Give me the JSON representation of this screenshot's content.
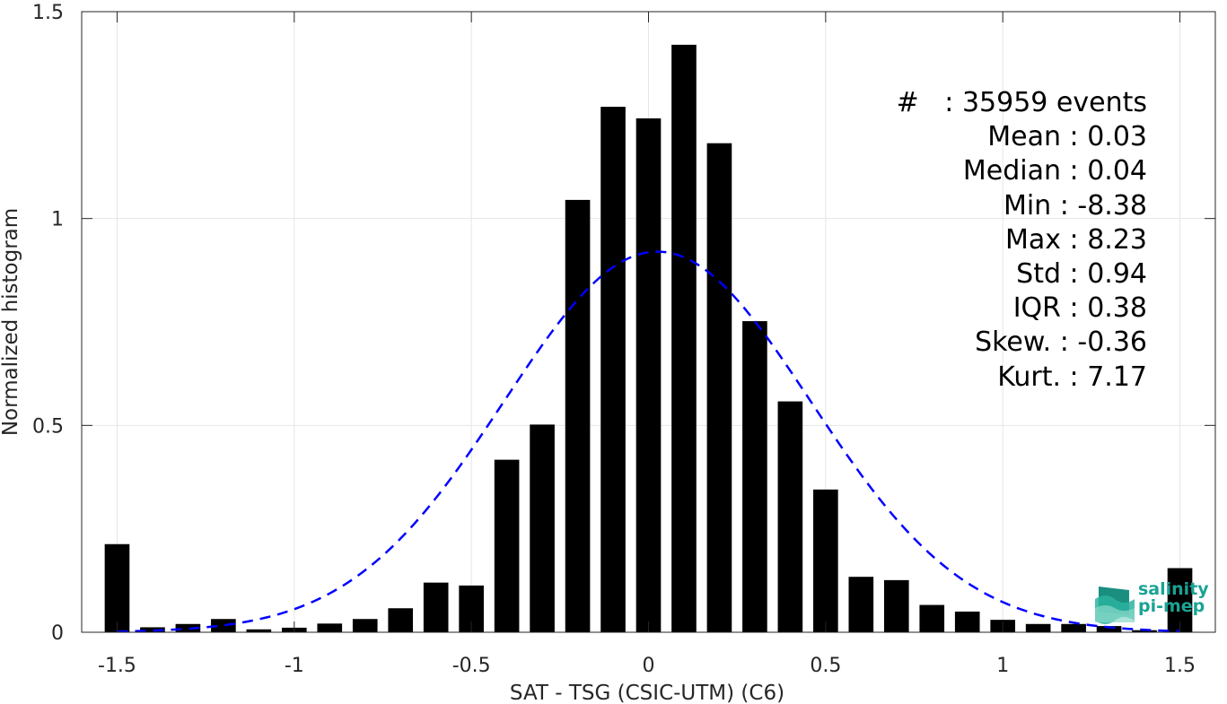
{
  "chart_data": {
    "type": "bar",
    "xlabel": "SAT - TSG (CSIC-UTM) (C6)",
    "ylabel": "Normalized histogram",
    "xlim": [
      -1.6,
      1.6
    ],
    "ylim": [
      0,
      1.5
    ],
    "xticks": [
      -1.5,
      -1,
      -0.5,
      0,
      0.5,
      1,
      1.5
    ],
    "xtick_labels": [
      "-1.5",
      "-1",
      "-0.5",
      "0",
      "0.5",
      "1",
      "1.5"
    ],
    "yticks": [
      0,
      0.5,
      1,
      1.5
    ],
    "ytick_labels": [
      "0",
      "0.5",
      "1",
      "1.5"
    ],
    "grid": true,
    "bar_color": "#000000",
    "fit_color": "#0000ff",
    "x": [
      -1.5,
      -1.4,
      -1.3,
      -1.2,
      -1.1,
      -1.0,
      -0.9,
      -0.8,
      -0.7,
      -0.6,
      -0.5,
      -0.4,
      -0.3,
      -0.2,
      -0.1,
      0.0,
      0.1,
      0.2,
      0.3,
      0.4,
      0.5,
      0.6,
      0.7,
      0.8,
      0.9,
      1.0,
      1.1,
      1.2,
      1.3,
      1.4,
      1.5
    ],
    "values": [
      0.213,
      0.012,
      0.02,
      0.032,
      0.007,
      0.011,
      0.021,
      0.032,
      0.058,
      0.12,
      0.113,
      0.417,
      0.502,
      1.045,
      1.27,
      1.242,
      1.42,
      1.182,
      0.752,
      0.558,
      0.345,
      0.134,
      0.126,
      0.066,
      0.05,
      0.03,
      0.02,
      0.02,
      0.015,
      0.005,
      0.155
    ],
    "fit": {
      "type": "normal",
      "style": "dashed",
      "mean": 0.025,
      "std": 0.433,
      "peak": 0.92
    },
    "stats": [
      {
        "label": "#  ",
        "value": "35959 events"
      },
      {
        "label": "Mean",
        "value": "0.03"
      },
      {
        "label": "Median",
        "value": "0.04"
      },
      {
        "label": "Min",
        "value": "-8.38"
      },
      {
        "label": "Max",
        "value": "8.23"
      },
      {
        "label": "Std",
        "value": "0.94"
      },
      {
        "label": "IQR",
        "value": "0.38"
      },
      {
        "label": "Skew.",
        "value": "-0.36"
      },
      {
        "label": "Kurt.",
        "value": "7.17"
      }
    ]
  },
  "logo": {
    "line1": "salinity",
    "line2": "pi-mep",
    "color": "#1aa394"
  }
}
